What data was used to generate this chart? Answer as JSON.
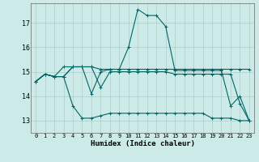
{
  "title": "",
  "xlabel": "Humidex (Indice chaleur)",
  "ylabel": "",
  "background_color": "#cceae7",
  "grid_color": "#b0ccc9",
  "line_color": "#006666",
  "xlim": [
    -0.5,
    23.5
  ],
  "ylim": [
    12.5,
    17.8
  ],
  "yticks": [
    13,
    14,
    15,
    16,
    17
  ],
  "xticks": [
    0,
    1,
    2,
    3,
    4,
    5,
    6,
    7,
    8,
    9,
    10,
    11,
    12,
    13,
    14,
    15,
    16,
    17,
    18,
    19,
    20,
    21,
    22,
    23
  ],
  "series": [
    [
      14.6,
      14.9,
      14.8,
      15.2,
      15.2,
      15.2,
      15.2,
      15.1,
      15.1,
      15.1,
      15.1,
      15.1,
      15.1,
      15.1,
      15.1,
      15.1,
      15.1,
      15.1,
      15.1,
      15.1,
      15.1,
      15.1,
      15.1,
      15.1
    ],
    [
      14.6,
      14.9,
      14.8,
      14.8,
      13.6,
      13.1,
      13.1,
      13.2,
      13.3,
      13.3,
      13.3,
      13.3,
      13.3,
      13.3,
      13.3,
      13.3,
      13.3,
      13.3,
      13.3,
      13.1,
      13.1,
      13.1,
      13.0,
      13.0
    ],
    [
      14.6,
      14.9,
      14.8,
      14.8,
      15.2,
      15.2,
      14.1,
      15.0,
      15.1,
      15.1,
      16.0,
      17.55,
      17.3,
      17.3,
      16.85,
      15.05,
      15.05,
      15.05,
      15.05,
      15.05,
      15.05,
      13.6,
      14.0,
      13.0
    ],
    [
      14.6,
      14.9,
      14.8,
      14.8,
      15.2,
      15.2,
      15.2,
      14.35,
      15.0,
      15.0,
      15.0,
      15.0,
      15.0,
      15.0,
      15.0,
      14.9,
      14.9,
      14.9,
      14.9,
      14.9,
      14.9,
      14.9,
      13.7,
      13.0
    ]
  ]
}
